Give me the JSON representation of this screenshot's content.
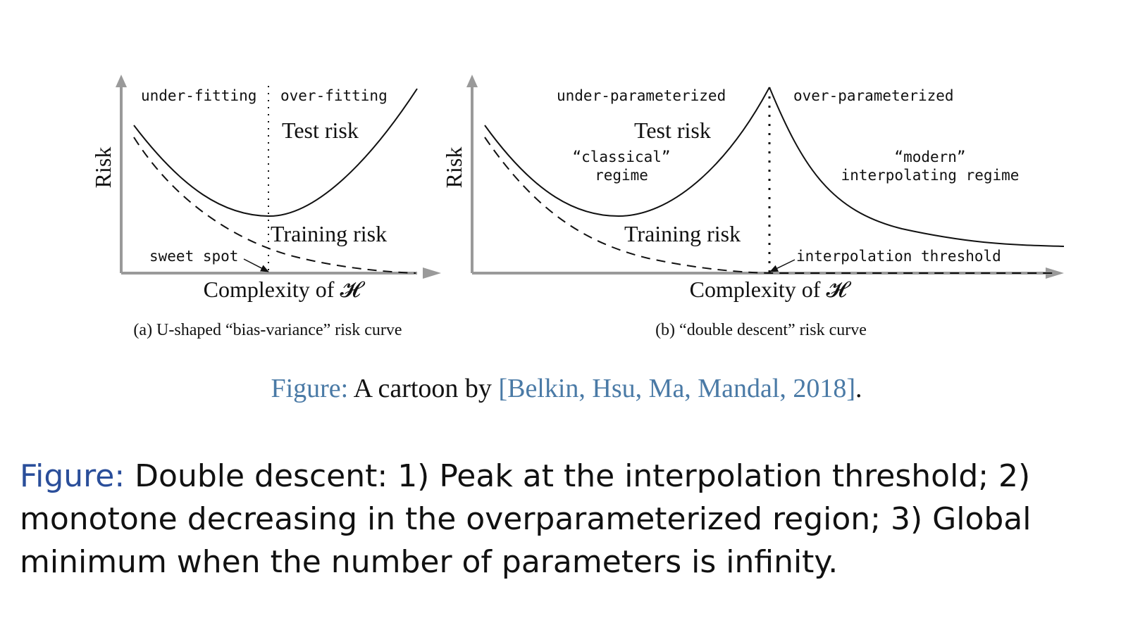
{
  "panel_a": {
    "under_label": "under-fitting",
    "over_label": "over-fitting",
    "test_label": "Test risk",
    "train_label": "Training risk",
    "ylabel": "Risk",
    "xlabel": "Complexity of 𝓗",
    "sweet_spot_label": "sweet spot",
    "subcaption": "(a)  U-shaped “bias-variance” risk curve"
  },
  "panel_b": {
    "under_label": "under-parameterized",
    "over_label": "over-parameterized",
    "test_label": "Test risk",
    "train_label": "Training risk",
    "classical_line1": "“classical”",
    "classical_line2": "regime",
    "modern_line1": "“modern”",
    "modern_line2": "interpolating regime",
    "ylabel": "Risk",
    "xlabel": "Complexity of 𝓗",
    "threshold_label": "interpolation threshold",
    "subcaption": "(b)  “double descent” risk curve"
  },
  "caption1": {
    "prefix": "Figure:",
    "text": " A cartoon by ",
    "citation": "[Belkin, Hsu, Ma, Mandal, 2018]",
    "end": "."
  },
  "caption2": {
    "prefix": "Figure:",
    "text": " Double descent: 1) Peak at the interpolation threshold; 2) monotone decreasing in the overparameterized region; 3) Global minimum when the number of parameters is infinity."
  }
}
